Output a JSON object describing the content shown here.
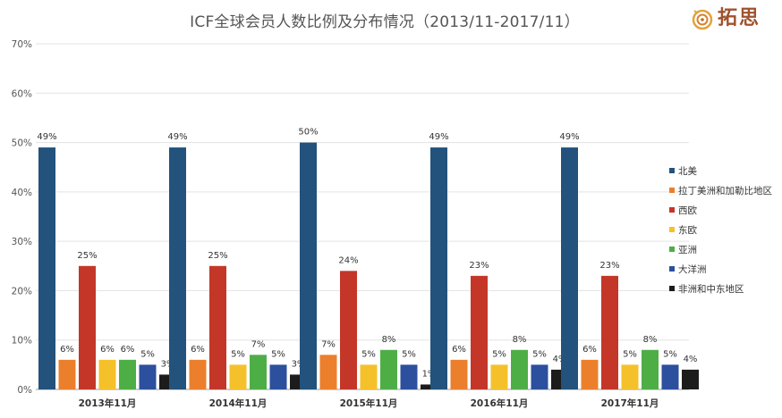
{
  "chart_data": {
    "type": "bar",
    "title": "ICF全球会员人数比例及分布情况（2013/11-2017/11）",
    "xlabel": "",
    "ylabel": "",
    "ylim": [
      0,
      70
    ],
    "y_ticks": [
      "0%",
      "10%",
      "20%",
      "30%",
      "40%",
      "50%",
      "60%",
      "70%"
    ],
    "grid": true,
    "legend_position": "right",
    "categories": [
      "2013年11月",
      "2014年11月",
      "2015年11月",
      "2016年11月",
      "2017年11月"
    ],
    "series": [
      {
        "name": "北美",
        "color": "#23527c",
        "values": [
          49,
          49,
          50,
          49,
          49
        ]
      },
      {
        "name": "拉丁美洲和加勒比地区",
        "color": "#ec7f2c",
        "values": [
          6,
          6,
          7,
          6,
          6
        ]
      },
      {
        "name": "西欧",
        "color": "#c43728",
        "values": [
          25,
          25,
          24,
          23,
          23
        ]
      },
      {
        "name": "东欧",
        "color": "#f5c12b",
        "values": [
          6,
          5,
          5,
          5,
          5
        ]
      },
      {
        "name": "亚洲",
        "color": "#4eae46",
        "values": [
          6,
          7,
          8,
          8,
          8
        ]
      },
      {
        "name": "大洋洲",
        "color": "#2c4f9e",
        "values": [
          5,
          5,
          5,
          5,
          5
        ]
      },
      {
        "name": "非洲和中东地区",
        "color": "#1c1c1c",
        "values": [
          3,
          3,
          1,
          4,
          4
        ]
      }
    ],
    "data_labels": [
      [
        "49%",
        "6%",
        "25%",
        "6%",
        "6%",
        "5%",
        "3%"
      ],
      [
        "49%",
        "6%",
        "25%",
        "5%",
        "7%",
        "5%",
        "3%"
      ],
      [
        "50%",
        "7%",
        "24%",
        "5%",
        "8%",
        "5%",
        "1%"
      ],
      [
        "49%",
        "6%",
        "23%",
        "5%",
        "8%",
        "5%",
        "4%"
      ],
      [
        "49%",
        "6%",
        "23%",
        "5%",
        "8%",
        "5%",
        "4%"
      ]
    ]
  },
  "logo": {
    "text": "拓思",
    "subtitle": "",
    "accent": "#d4832f"
  }
}
